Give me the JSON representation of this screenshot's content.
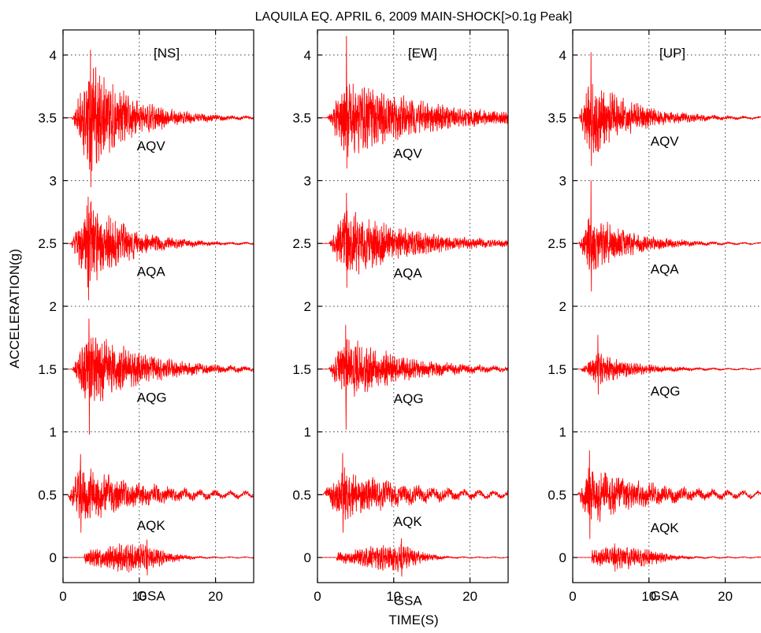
{
  "chart_data": {
    "type": "line",
    "title": "LAQUILA EQ. APRIL 6, 2009 MAIN-SHOCK[>0.1g Peak]",
    "xlabel": "TIME(S)",
    "ylabel": "ACCELERATION(g)",
    "xlim": [
      0,
      25
    ],
    "ylim": [
      -0.2,
      4.2
    ],
    "xticks": [
      0,
      10,
      20
    ],
    "xtick_labels": [
      "0",
      "10",
      "20"
    ],
    "yticks": [
      0,
      0.5,
      1,
      1.5,
      2,
      2.5,
      3,
      3.5,
      4
    ],
    "ytick_labels": [
      "0",
      "0.5",
      "1",
      "1.5",
      "2",
      "2.5",
      "3",
      "3.5",
      "4"
    ],
    "grid": true,
    "trace_color": "#ff0000",
    "panels": [
      {
        "component": "[NS]",
        "series": [
          {
            "name": "AQV",
            "offset": 3.5,
            "onset": 1.2,
            "peak_time": 3.6,
            "peak_high": 4.04,
            "peak_low": 2.95,
            "env_amp": 0.3,
            "decay": 0.18,
            "tail_amp": 0.006,
            "tail_period": 2.0
          },
          {
            "name": "AQA",
            "offset": 2.5,
            "onset": 1.0,
            "peak_time": 3.3,
            "peak_high": 2.87,
            "peak_low": 2.05,
            "env_amp": 0.26,
            "decay": 0.2,
            "tail_amp": 0.006,
            "tail_period": 2.0
          },
          {
            "name": "AQG",
            "offset": 1.5,
            "onset": 1.2,
            "peak_time": 3.4,
            "peak_high": 1.9,
            "peak_low": 0.98,
            "env_amp": 0.22,
            "decay": 0.14,
            "tail_amp": 0.008,
            "tail_period": 2.0
          },
          {
            "name": "AQK",
            "offset": 0.5,
            "onset": 0.7,
            "peak_time": 2.3,
            "peak_high": 0.82,
            "peak_low": 0.2,
            "env_amp": 0.16,
            "decay": 0.13,
            "tail_amp": 0.018,
            "tail_period": 2.0
          },
          {
            "name": "GSA",
            "offset": 0.0,
            "onset": 2.8,
            "peak_time": 11.0,
            "peak_high": 0.14,
            "peak_low": -0.14,
            "env_amp": 0.07,
            "decay": 0.15,
            "tail_amp": 0.004,
            "tail_period": 2.0,
            "center": 9.0,
            "width": 3.5
          }
        ]
      },
      {
        "component": "[EW]",
        "series": [
          {
            "name": "AQV",
            "offset": 3.5,
            "onset": 1.3,
            "peak_time": 3.8,
            "peak_high": 4.15,
            "peak_low": 3.1,
            "env_amp": 0.22,
            "decay": 0.09,
            "tail_amp": 0.006,
            "tail_period": 2.0
          },
          {
            "name": "AQA",
            "offset": 2.5,
            "onset": 1.5,
            "peak_time": 3.8,
            "peak_high": 2.9,
            "peak_low": 2.15,
            "env_amp": 0.2,
            "decay": 0.12,
            "tail_amp": 0.006,
            "tail_period": 2.0
          },
          {
            "name": "AQG",
            "offset": 1.5,
            "onset": 1.5,
            "peak_time": 3.7,
            "peak_high": 1.85,
            "peak_low": 1.02,
            "env_amp": 0.18,
            "decay": 0.13,
            "tail_amp": 0.008,
            "tail_period": 2.0
          },
          {
            "name": "AQK",
            "offset": 0.5,
            "onset": 0.8,
            "peak_time": 3.3,
            "peak_high": 0.83,
            "peak_low": 0.2,
            "env_amp": 0.14,
            "decay": 0.12,
            "tail_amp": 0.02,
            "tail_period": 2.0
          },
          {
            "name": "GSA",
            "offset": 0.0,
            "onset": 2.5,
            "peak_time": 11.0,
            "peak_high": 0.15,
            "peak_low": -0.15,
            "env_amp": 0.07,
            "decay": 0.15,
            "tail_amp": 0.004,
            "tail_period": 2.0,
            "center": 9.5,
            "width": 3.0
          }
        ]
      },
      {
        "component": "[UP]",
        "series": [
          {
            "name": "AQV",
            "offset": 3.5,
            "onset": 0.8,
            "peak_time": 2.4,
            "peak_high": 4.02,
            "peak_low": 3.12,
            "env_amp": 0.22,
            "decay": 0.18,
            "tail_amp": 0.006,
            "tail_period": 2.0
          },
          {
            "name": "AQA",
            "offset": 2.5,
            "onset": 0.8,
            "peak_time": 2.4,
            "peak_high": 3.0,
            "peak_low": 2.12,
            "env_amp": 0.18,
            "decay": 0.2,
            "tail_amp": 0.006,
            "tail_period": 2.0
          },
          {
            "name": "AQG",
            "offset": 1.5,
            "onset": 1.0,
            "peak_time": 3.3,
            "peak_high": 1.77,
            "peak_low": 1.3,
            "env_amp": 0.09,
            "decay": 0.2,
            "tail_amp": 0.005,
            "tail_period": 2.0
          },
          {
            "name": "AQK",
            "offset": 0.5,
            "onset": 0.7,
            "peak_time": 2.2,
            "peak_high": 0.85,
            "peak_low": 0.15,
            "env_amp": 0.16,
            "decay": 0.13,
            "tail_amp": 0.02,
            "tail_period": 2.0
          },
          {
            "name": "GSA",
            "offset": 0.0,
            "onset": 2.5,
            "peak_time": 5.5,
            "peak_high": 0.11,
            "peak_low": -0.11,
            "env_amp": 0.05,
            "decay": 0.12,
            "tail_amp": 0.004,
            "tail_period": 2.0,
            "center": 7.0,
            "width": 3.5
          }
        ]
      }
    ]
  }
}
